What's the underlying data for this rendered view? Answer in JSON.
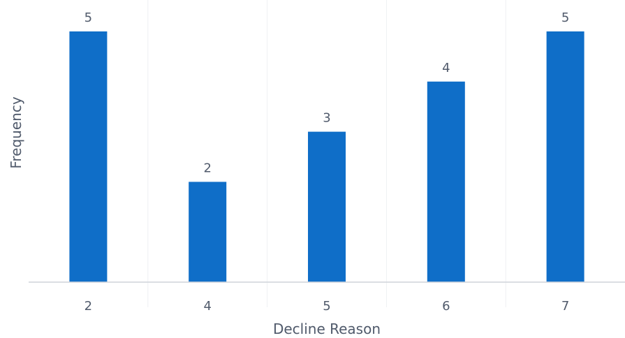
{
  "chart_data": {
    "type": "bar",
    "categories": [
      "2",
      "4",
      "5",
      "6",
      "7"
    ],
    "values": [
      5,
      2,
      3,
      4,
      5
    ],
    "data_labels": [
      "5",
      "2",
      "3",
      "4",
      "5"
    ],
    "title": "",
    "xlabel": "Decline Reason",
    "ylabel": "Frequency",
    "ylim": [
      0,
      5
    ],
    "grid": "vertical",
    "legend": "none",
    "colors": {
      "bar": "#0f6ec8",
      "text": "#505a6b",
      "grid": "#eef0f3",
      "baseline": "#cfd4da"
    }
  }
}
